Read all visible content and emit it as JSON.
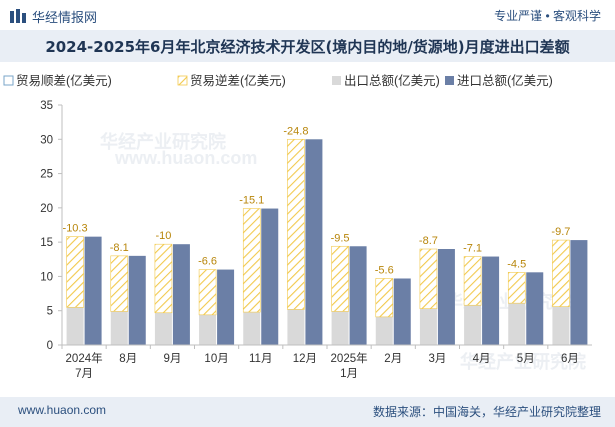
{
  "header": {
    "brand": "华经情报网",
    "tagline": "专业严谨 • 客观科学",
    "title": "2024-2025年6月年北京经济技术开发区(境内目的地/货源地)月度进出口差额"
  },
  "footer": {
    "website": "www.huaon.com",
    "source": "数据来源：中国海关，华经产业研究院整理"
  },
  "watermark": {
    "text": "华经产业研究院",
    "url": "www.huaon.com"
  },
  "colors": {
    "import": "#6b7fa6",
    "export": "#d9d9d9",
    "deficit_hatch": "#f2c94c",
    "label": "#b8860b"
  },
  "chart_data": {
    "type": "bar",
    "legend": [
      "贸易顺差(亿美元)",
      "贸易逆差(亿美元)",
      "出口总额(亿美元)",
      "进口总额(亿美元)"
    ],
    "legend_position": "top-left",
    "categories": [
      [
        "2024年",
        "7月"
      ],
      [
        "8月"
      ],
      [
        "9月"
      ],
      [
        "10月"
      ],
      [
        "11月"
      ],
      [
        "12月"
      ],
      [
        "2025年",
        "1月"
      ],
      [
        "2月"
      ],
      [
        "3月"
      ],
      [
        "4月"
      ],
      [
        "5月"
      ],
      [
        "6月"
      ]
    ],
    "series": [
      {
        "name": "贸易顺差(亿美元)",
        "values": [
          0,
          0,
          0,
          0,
          0,
          0,
          0,
          0,
          0,
          0,
          0,
          0
        ]
      },
      {
        "name": "贸易逆差(亿美元)",
        "values": [
          -10.3,
          -8.1,
          -10,
          -6.6,
          -15.1,
          -24.8,
          -9.5,
          -5.6,
          -8.7,
          -7.1,
          -4.5,
          -9.7
        ]
      },
      {
        "name": "出口总额(亿美元)",
        "values": [
          5.5,
          4.9,
          4.7,
          4.4,
          4.8,
          5.2,
          4.9,
          4.1,
          5.3,
          5.8,
          6.1,
          5.6
        ]
      },
      {
        "name": "进口总额(亿美元)",
        "values": [
          15.8,
          13.0,
          14.7,
          11.0,
          19.9,
          30.0,
          14.4,
          9.7,
          14.0,
          12.9,
          10.6,
          15.3
        ]
      }
    ],
    "deficit_labels": [
      "-10.3",
      "-8.1",
      "-10",
      "-6.6",
      "-15.1",
      "-24.8",
      "-9.5",
      "-5.6",
      "-8.7",
      "-7.1",
      "-4.5",
      "-9.7"
    ],
    "ylim": [
      0,
      35
    ],
    "yticks": [
      0,
      5,
      10,
      15,
      20,
      25,
      30,
      35
    ],
    "grid": false
  }
}
